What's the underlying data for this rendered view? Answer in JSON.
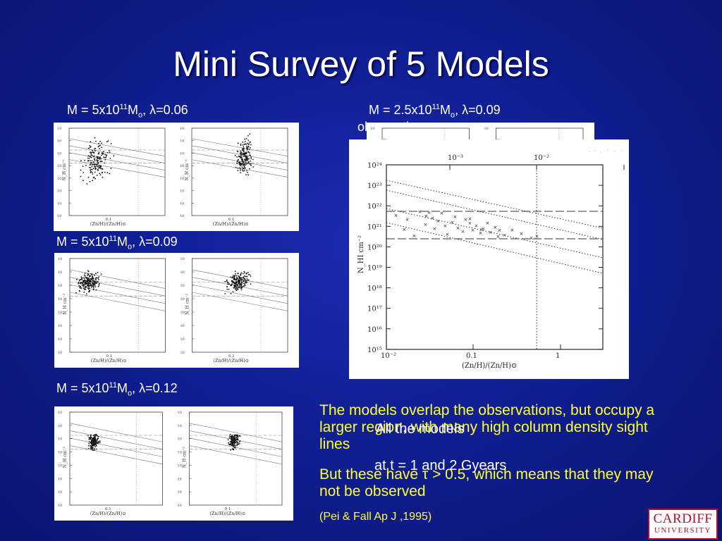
{
  "slide": {
    "title": "Mini Survey of 5 Models",
    "label_1": {
      "pre": "M = 5x10",
      "sup": "11",
      "mid": "M",
      "sub": "o",
      "post": ", λ=0.06"
    },
    "label_2": {
      "pre": "M = 2.5x10",
      "sup": "11",
      "mid": "M",
      "sub": "o",
      "post": ", λ=0.09"
    },
    "label_3": {
      "pre": "M = 5x10",
      "sup": "11",
      "mid": "M",
      "sub": "o",
      "post": ", λ=0.09"
    },
    "label_4": {
      "pre": "M = 5x10",
      "sup": "11",
      "mid": "M",
      "sub": "o",
      "post": ", λ=0.12"
    },
    "observations_label": "observations",
    "obs_plot": {
      "top_ticks": [
        "10⁻³",
        "10⁻²"
      ],
      "bottom_ticks": [
        "10⁻²",
        "0.1",
        "1"
      ],
      "y_ticks": [
        "10²⁴",
        "10²³",
        "10²²",
        "10²¹",
        "10²⁰",
        "10¹⁹",
        "10¹⁸",
        "10¹⁷",
        "10¹⁶",
        "10¹⁵"
      ],
      "ylabel": "N_HI cm⁻²",
      "xlabel": "(Zn/H)/(Zn/H)⊙"
    },
    "model_plot": {
      "xlabel": "(Zn/H)/(Zn/H)⊙",
      "ylabel": "N_H cm⁻²",
      "tick": "0.1"
    },
    "bullet_1": "The models overlap the observations, but occupy a larger region, with many high column density sight lines",
    "bullet_2": "But these have τ > 0.5, which means that they may not be observed",
    "citation": "(Pei & Fall Ap J ,1995)",
    "overlap_text_1": "All the models",
    "overlap_text_2": "at t = 1 and 2 Gyears",
    "logo_line1": "CARDIFF",
    "logo_line2": "UNIVERSITY"
  },
  "colors": {
    "background": "#101f93",
    "title": "#ffffff",
    "bullet_text": "#ffff33",
    "logo_red": "#b0102a"
  }
}
